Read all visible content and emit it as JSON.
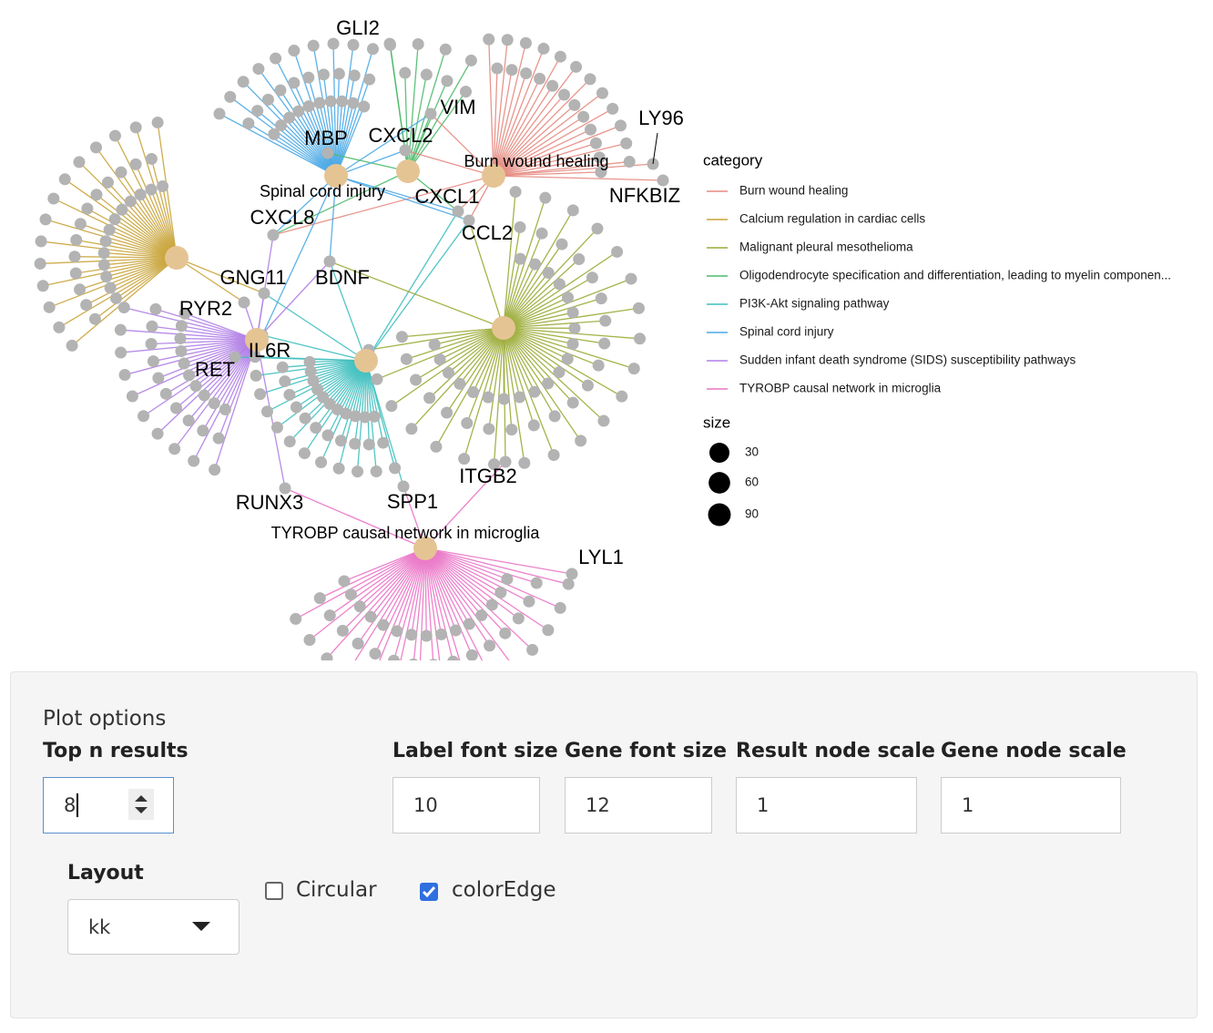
{
  "network": {
    "categories": [
      {
        "name": "Burn wound healing",
        "color": "#e58a80"
      },
      {
        "name": "Calcium regulation in cardiac cells",
        "color": "#c9a43a"
      },
      {
        "name": "Malignant pleural mesothelioma",
        "color": "#9aab35"
      },
      {
        "name": "Oligodendrocyte specification and differentiation, leading to myelin componen...",
        "color": "#4dba6b"
      },
      {
        "name": "PI3K-Akt signaling pathway",
        "color": "#3fbfbf"
      },
      {
        "name": "Spinal cord injury",
        "color": "#4aa8e6"
      },
      {
        "name": "Sudden infant death syndrome (SIDS) susceptibility pathways",
        "color": "#b07ee6"
      },
      {
        "name": "TYROBP causal network in microglia",
        "color": "#ea74c6"
      }
    ],
    "genes": [
      "GLI2",
      "VIM",
      "LY96",
      "NFKBIZ",
      "MBP",
      "CXCL2",
      "CXCL1",
      "CXCL8",
      "CCL2",
      "GNG11",
      "BDNF",
      "RYR2",
      "IL6R",
      "RET",
      "RUNX3",
      "SPP1",
      "ITGB2",
      "LYL1"
    ],
    "legend": {
      "category_title": "category",
      "size_title": "size",
      "sizes": [
        30,
        60,
        90
      ]
    }
  },
  "controls": {
    "section_title": "Plot options",
    "top_n": {
      "label": "Top n results",
      "value": 8
    },
    "label_font_size": {
      "label": "Label font size",
      "value": 10
    },
    "gene_font_size": {
      "label": "Gene font size",
      "value": 12
    },
    "result_node_scale": {
      "label": "Result node scale",
      "value": 1
    },
    "gene_node_scale": {
      "label": "Gene node scale",
      "value": 1
    },
    "layout": {
      "label": "Layout",
      "value": "kk"
    },
    "circular": {
      "label": "Circular",
      "checked": false
    },
    "color_edge": {
      "label": "colorEdge",
      "checked": true
    }
  }
}
